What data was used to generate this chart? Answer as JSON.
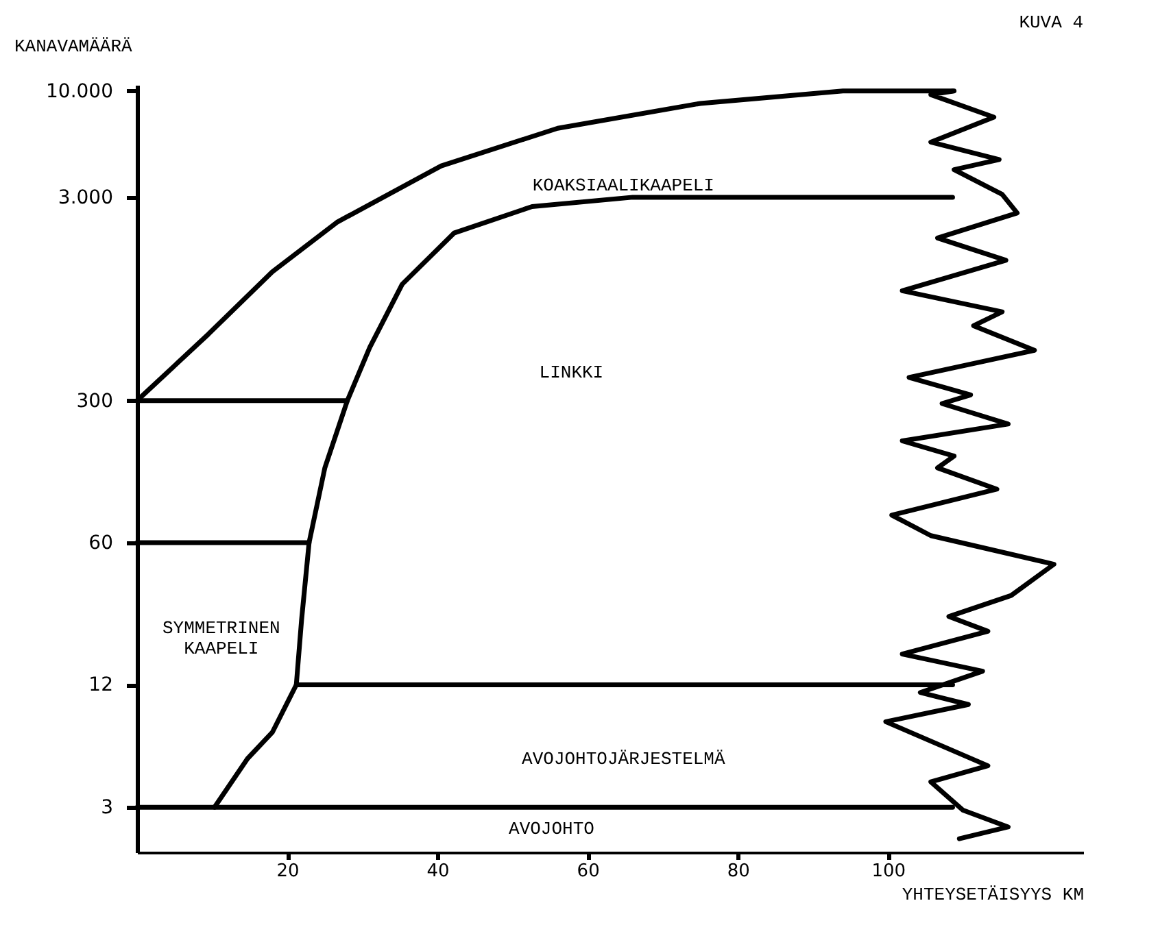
{
  "chart_data": {
    "type": "line",
    "title": "KUVA 4",
    "xlabel": "YHTEYSETÄISYYS KM",
    "ylabel": "KANAVAMÄÄRÄ",
    "xlim": [
      0,
      126
    ],
    "ylim": [
      1.8,
      10700
    ],
    "log": "y",
    "xticks": [
      20,
      40,
      60,
      80,
      100
    ],
    "yticks": [
      3,
      12,
      60,
      300,
      {
        "value": 3000,
        "label": "3.000"
      },
      {
        "value": 10000,
        "label": "10.000"
      }
    ],
    "grid": false,
    "marker": "none",
    "line_style": "solid",
    "series": [
      {
        "color": "#000000",
        "x": [
          0,
          9.5,
          18,
          26.7,
          40.5,
          56,
          75,
          94,
          108.6
        ],
        "values": [
          300,
          637,
          1290,
          2270,
          4280,
          6550,
          8680,
          10000,
          10000
        ]
      },
      {
        "color": "#000000",
        "x": [
          10.3,
          14.7,
          18,
          21.2,
          21.9,
          22.9,
          25,
          28,
          31,
          35.3,
          42.2,
          52.6,
          66,
          108.6
        ],
        "values": [
          3,
          5.2,
          7,
          12,
          25,
          60,
          140,
          300,
          550,
          1120,
          2000,
          2700,
          3000,
          3000
        ]
      },
      {
        "color": "#000000",
        "x": [
          0,
          28
        ],
        "values": [
          300,
          300
        ]
      },
      {
        "color": "#000000",
        "x": [
          0,
          22.9
        ],
        "values": [
          60,
          60
        ]
      },
      {
        "color": "#000000",
        "x": [
          21.2,
          108.6
        ],
        "values": [
          12,
          12
        ]
      },
      {
        "color": "#000000",
        "x": [
          0,
          108.6
        ],
        "values": [
          3,
          3
        ]
      },
      {
        "color": "#000000",
        "x": [
          108.8,
          105.7,
          114.1,
          105.7,
          114.8,
          108.8,
          115.2,
          117.2,
          106.6,
          115.7,
          101.9,
          115.2,
          111.4,
          119.5,
          102.8,
          111.0,
          107.2,
          116.0,
          101.9,
          108.8,
          106.6,
          114.5,
          100.5,
          105.7,
          122.1,
          116.4,
          108.1,
          113.3,
          101.9,
          112.6,
          104.3,
          110.7,
          99.7,
          113.3,
          105.7,
          110.0,
          116.0,
          109.5
        ],
        "values": [
          10000,
          9590,
          7430,
          5600,
          4600,
          4100,
          3100,
          2510,
          1890,
          1470,
          1040,
          820,
          700,
          530,
          390,
          320,
          290,
          230,
          190,
          160,
          140,
          110,
          82,
          65,
          47,
          33,
          26,
          22,
          17,
          14,
          11,
          9.6,
          7.9,
          4.8,
          4.0,
          2.9,
          2.4,
          2.1
        ]
      }
    ],
    "annotations": [
      "KOAKSIAALIKAAPELI",
      "LINKKI",
      "SYMMETRINEN\nKAAPELI",
      "AVOJOHTOJÄRJESTELMÄ",
      "AVOJOHTO"
    ]
  }
}
